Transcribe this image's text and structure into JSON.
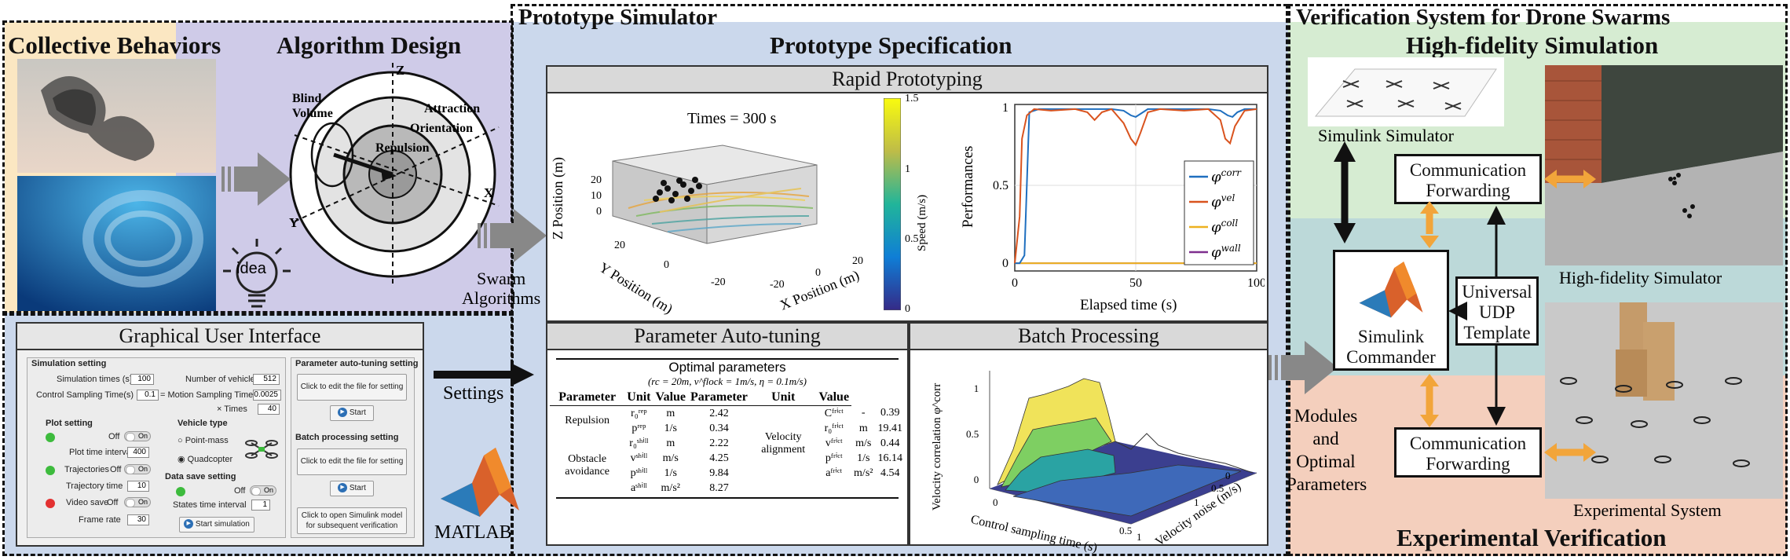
{
  "sections": {
    "collective": "Collective Behaviors",
    "algorithm": "Algorithm Design",
    "prototype_sim": "Prototype Simulator",
    "prototype_spec": "Prototype Specification",
    "verification": "Verification System for Drone Swarms",
    "high_fidelity": "High-fidelity Simulation",
    "experimental_ver": "Experimental Verification"
  },
  "algo": {
    "blind_volume": [
      "Blind",
      "Volume"
    ],
    "attraction": "Attraction",
    "orientation": "Orientation",
    "repulsion": "Repulsion",
    "axis_z": "Z",
    "axis_x": "X",
    "axis_y": "Y",
    "idea": "idea"
  },
  "arrows": {
    "swarm_algorithms": [
      "Swarm",
      "Algorithms"
    ],
    "settings": "Settings",
    "matlab": "MATLAB",
    "modules": [
      "Modules",
      "and",
      "Optimal",
      "Parameters"
    ]
  },
  "rapid": {
    "title": "Rapid Prototyping",
    "plot3d_title": "Times = 300 s",
    "zlabel": "Z Position (m)",
    "ylabel": "Y Position (m)",
    "xlabel": "X Position (m)",
    "colorbar_label": "Speed (m/s)",
    "zticks": [
      "0",
      "10",
      "20"
    ],
    "yticks": [
      "20",
      "0",
      "-20"
    ],
    "xticks": [
      "-20",
      "0",
      "20"
    ],
    "cbticks": [
      "1.5",
      "1",
      "0.5",
      "0"
    ]
  },
  "chart_data": {
    "type": "line",
    "title": "",
    "xlabel": "Elapsed time (s)",
    "ylabel": "Performances",
    "xlim": [
      0,
      100
    ],
    "ylim": [
      -0.05,
      1.02
    ],
    "xticks": [
      "0",
      "50",
      "100"
    ],
    "yticks": [
      "0",
      "0.5",
      "1"
    ],
    "legend_position": "right",
    "series": [
      {
        "name": "φ^corr",
        "color": "#1f6fbf",
        "x": [
          0,
          2,
          4,
          6,
          10,
          20,
          30,
          40,
          45,
          48,
          50,
          52,
          55,
          60,
          70,
          80,
          85,
          88,
          90,
          92,
          95,
          100
        ],
        "y": [
          0,
          0,
          0.05,
          0.97,
          0.99,
          0.99,
          0.99,
          0.99,
          0.98,
          0.95,
          0.94,
          0.96,
          0.99,
          0.99,
          0.99,
          0.99,
          0.98,
          0.95,
          0.94,
          0.97,
          0.99,
          0.99
        ]
      },
      {
        "name": "φ^vel",
        "color": "#d9531e",
        "x": [
          0,
          2,
          3,
          5,
          8,
          15,
          25,
          30,
          33,
          36,
          40,
          45,
          48,
          50,
          52,
          55,
          60,
          70,
          80,
          85,
          87,
          89,
          91,
          95,
          100
        ],
        "y": [
          0,
          0.3,
          0.8,
          0.95,
          0.99,
          0.98,
          0.99,
          0.97,
          0.92,
          0.97,
          0.99,
          0.9,
          0.8,
          0.76,
          0.84,
          0.97,
          0.99,
          0.98,
          0.99,
          0.92,
          0.8,
          0.77,
          0.88,
          0.98,
          0.99
        ]
      },
      {
        "name": "φ^coll",
        "color": "#edb120",
        "x": [
          0,
          100
        ],
        "y": [
          0,
          0
        ]
      },
      {
        "name": "φ^wall",
        "color": "#7e2f8e",
        "x": [
          0,
          100
        ],
        "y": [
          0,
          0
        ]
      }
    ]
  },
  "tuning": {
    "title": "Parameter Auto-tuning",
    "table_title": "Optimal parameters",
    "subtitle": "(rc = 20m, v^flock = 1m/s, η = 0.1m/s)",
    "headers": [
      "Parameter",
      "Unit",
      "Value",
      "Parameter",
      "Unit",
      "Value"
    ],
    "groups": {
      "repulsion": "Repulsion",
      "obstacle": [
        "Obstacle",
        "avoidance"
      ],
      "velocity": [
        "Velocity",
        "alignment"
      ]
    },
    "left_rows": [
      {
        "sym": "r₀ʳᵉᵖ",
        "unit": "m",
        "value": "2.42"
      },
      {
        "sym": "pʳᵉᵖ",
        "unit": "1/s",
        "value": "0.34"
      },
      {
        "sym": "r₀ˢʰⁱˡˡ",
        "unit": "m",
        "value": "2.22"
      },
      {
        "sym": "vˢʰⁱˡˡ",
        "unit": "m/s",
        "value": "4.25"
      },
      {
        "sym": "pˢʰⁱˡˡ",
        "unit": "1/s",
        "value": "9.84"
      },
      {
        "sym": "aˢʰⁱˡˡ",
        "unit": "m/s²",
        "value": "8.27"
      }
    ],
    "right_rows": [
      {
        "sym": "Cᶠʳⁱᶜᵗ",
        "unit": "-",
        "value": "0.39"
      },
      {
        "sym": "r₀ᶠʳⁱᶜᵗ",
        "unit": "m",
        "value": "19.41"
      },
      {
        "sym": "vᶠʳⁱᶜᵗ",
        "unit": "m/s",
        "value": "0.44"
      },
      {
        "sym": "pᶠʳⁱᶜᵗ",
        "unit": "1/s",
        "value": "16.14"
      },
      {
        "sym": "aᶠʳⁱᶜᵗ",
        "unit": "m/s²",
        "value": "4.54"
      }
    ]
  },
  "batch": {
    "title": "Batch Processing",
    "zlabel": "Velocity correlation φ^corr",
    "xlabel": "Control sampling time (s)",
    "ylabel": "Velocity noise (m/s)",
    "zticks": [
      "0",
      "0.5",
      "1"
    ],
    "xticks": [
      "0",
      "0.5",
      "1"
    ],
    "yticks": [
      "0",
      "0.5",
      "1"
    ]
  },
  "gui": {
    "title": "Graphical User Interface",
    "sim_setting": "Simulation setting",
    "sim_times_label": "Simulation times (s)",
    "sim_times_value": "100",
    "num_vehicles_label": "Number of vehicles",
    "num_vehicles_value": "512",
    "ctrl_sampling_label": "Control Sampling Time(s)",
    "ctrl_sampling_value": "0.1",
    "motion_sampling_label": "= Motion Sampling Time(s)",
    "motion_sampling_value": "0.0025",
    "times_label": "× Times",
    "times_value": "40",
    "plot_setting": "Plot setting",
    "plot_toggle": "Off",
    "plot_time_interval_label": "Plot time interval",
    "plot_time_interval_value": "400",
    "trajectories_label": "Trajectories",
    "trajectory_time_label": "Trajectory time",
    "trajectory_time_value": "10",
    "video_save_label": "Video save",
    "frame_rate_label": "Frame rate",
    "frame_rate_value": "30",
    "vehicle_type": "Vehicle type",
    "point_mass": "Point-mass",
    "quadcopter": "Quadcopter",
    "data_save_setting": "Data save setting",
    "states_interval_label": "States time interval",
    "states_interval_value": "1",
    "start_simulation": "Start simulation",
    "auto_tuning_setting": "Parameter auto-tuning setting",
    "auto_tuning_edit": "Click to edit the file for setting",
    "batch_setting": "Batch processing setting",
    "batch_edit": "Click to edit the file for setting",
    "start": "Start",
    "open_simulink": "Click to open Simulink model for subsequent verification",
    "off": "Off",
    "on": "On"
  },
  "verification": {
    "simulink_simulator": "Simulink Simulator",
    "comm_forwarding_top": [
      "Communication",
      "Forwarding"
    ],
    "comm_forwarding_bottom": [
      "Communication",
      "Forwarding"
    ],
    "simulink_commander": [
      "Simulink",
      "Commander"
    ],
    "universal_udp": [
      "Universal",
      "UDP",
      "Template"
    ],
    "high_fidelity_simulator": "High-fidelity Simulator",
    "experimental_system": "Experimental System"
  }
}
